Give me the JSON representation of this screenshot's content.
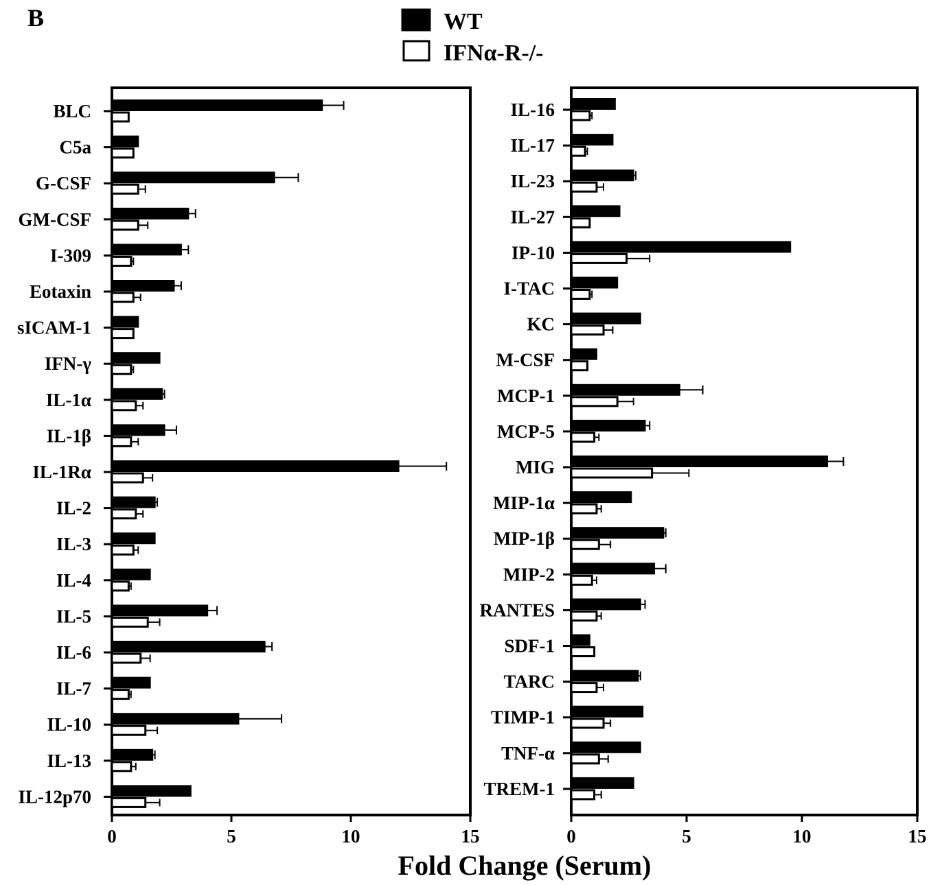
{
  "panel_letter": "B",
  "x_axis_title": "Fold Change (Serum)",
  "legend": {
    "items": [
      {
        "label": "WT",
        "fill": "#000000"
      },
      {
        "label": "IFNα-R-/-",
        "fill": "#ffffff"
      }
    ]
  },
  "colors": {
    "wt": "#000000",
    "ko": "#ffffff",
    "stroke": "#000000"
  },
  "chart_data": [
    {
      "type": "bar",
      "orientation": "horizontal",
      "xlim": [
        0,
        15
      ],
      "xticks": [
        0,
        5,
        10,
        15
      ],
      "grid": false,
      "legend_position": "top-center",
      "categories": [
        "BLC",
        "C5a",
        "G-CSF",
        "GM-CSF",
        "I-309",
        "Eotaxin",
        "sICAM-1",
        "IFN-γ",
        "IL-1α",
        "IL-1β",
        "IL-1Rα",
        "IL-2",
        "IL-3",
        "IL-4",
        "IL-5",
        "IL-6",
        "IL-7",
        "IL-10",
        "IL-13",
        "IL-12p70"
      ],
      "series": [
        {
          "name": "WT",
          "values": [
            8.8,
            1.1,
            6.8,
            3.2,
            2.9,
            2.6,
            1.1,
            2.0,
            2.1,
            2.2,
            12.0,
            1.8,
            1.8,
            1.6,
            4.0,
            6.4,
            1.6,
            5.3,
            1.7,
            3.3
          ],
          "errors": [
            0.9,
            0.0,
            1.0,
            0.3,
            0.3,
            0.3,
            0.0,
            0.0,
            0.1,
            0.5,
            2.0,
            0.1,
            0.0,
            0.0,
            0.4,
            0.3,
            0.0,
            1.8,
            0.1,
            0.0
          ]
        },
        {
          "name": "IFNα-R-/-",
          "values": [
            0.7,
            0.9,
            1.1,
            1.1,
            0.8,
            0.9,
            0.9,
            0.8,
            1.0,
            0.8,
            1.3,
            1.0,
            0.9,
            0.7,
            1.5,
            1.2,
            0.7,
            1.4,
            0.8,
            1.4
          ],
          "errors": [
            0.0,
            0.0,
            0.3,
            0.4,
            0.1,
            0.3,
            0.0,
            0.1,
            0.3,
            0.3,
            0.4,
            0.3,
            0.2,
            0.1,
            0.5,
            0.4,
            0.1,
            0.5,
            0.2,
            0.6
          ]
        }
      ]
    },
    {
      "type": "bar",
      "orientation": "horizontal",
      "xlim": [
        0,
        15
      ],
      "xticks": [
        0,
        5,
        10,
        15
      ],
      "grid": false,
      "categories": [
        "IL-16",
        "IL-17",
        "IL-23",
        "IL-27",
        "IP-10",
        "I-TAC",
        "KC",
        "M-CSF",
        "MCP-1",
        "MCP-5",
        "MIG",
        "MIP-1α",
        "MIP-1β",
        "MIP-2",
        "RANTES",
        "SDF-1",
        "TARC",
        "TIMP-1",
        "TNF-α",
        "TREM-1"
      ],
      "series": [
        {
          "name": "WT",
          "values": [
            1.9,
            1.8,
            2.7,
            2.1,
            9.5,
            2.0,
            3.0,
            1.1,
            4.7,
            3.2,
            11.1,
            2.6,
            4.0,
            3.6,
            3.0,
            0.8,
            2.9,
            3.1,
            3.0,
            2.7
          ],
          "errors": [
            0.0,
            0.0,
            0.1,
            0.0,
            0.0,
            0.0,
            0.0,
            0.0,
            1.0,
            0.2,
            0.7,
            0.0,
            0.1,
            0.5,
            0.2,
            0.0,
            0.1,
            0.0,
            0.0,
            0.0
          ]
        },
        {
          "name": "IFNα-R-/-",
          "values": [
            0.8,
            0.6,
            1.1,
            0.8,
            2.4,
            0.8,
            1.4,
            0.7,
            2.0,
            1.0,
            3.5,
            1.1,
            1.2,
            0.9,
            1.1,
            1.0,
            1.1,
            1.4,
            1.2,
            1.0
          ],
          "errors": [
            0.1,
            0.1,
            0.3,
            0.0,
            1.0,
            0.1,
            0.4,
            0.0,
            0.7,
            0.2,
            1.6,
            0.2,
            0.5,
            0.2,
            0.2,
            0.0,
            0.3,
            0.3,
            0.4,
            0.3
          ]
        }
      ]
    }
  ]
}
